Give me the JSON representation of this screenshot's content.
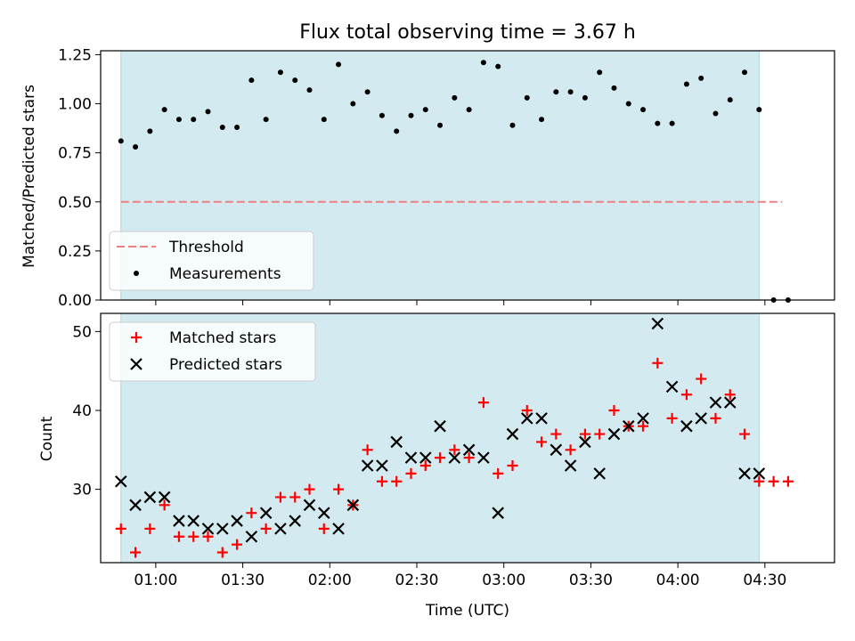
{
  "chart_data": [
    {
      "type": "scatter",
      "title": "Flux total observing time = 3.67 h",
      "xlabel": "",
      "ylabel": "Matched/Predicted stars",
      "xlim": [
        "00:41",
        "04:54"
      ],
      "ylim": [
        0,
        1.27
      ],
      "yticks": [
        "0.00",
        "0.25",
        "0.50",
        "0.75",
        "1.00",
        "1.25"
      ],
      "shaded_region": {
        "x0": "00:48",
        "x1": "04:28",
        "color": "#d3ebf0"
      },
      "legend_position": "lower-left",
      "series": [
        {
          "name": "Threshold",
          "kind": "line",
          "style": "dashed",
          "color": "#f08080",
          "x": [
            "00:48",
            "04:36"
          ],
          "y": [
            0.5,
            0.5
          ]
        },
        {
          "name": "Measurements",
          "kind": "points",
          "color": "#000000",
          "x": [
            "00:48",
            "00:53",
            "00:58",
            "01:03",
            "01:08",
            "01:13",
            "01:18",
            "01:23",
            "01:28",
            "01:33",
            "01:38",
            "01:43",
            "01:48",
            "01:53",
            "01:58",
            "02:03",
            "02:08",
            "02:13",
            "02:18",
            "02:23",
            "02:28",
            "02:33",
            "02:38",
            "02:43",
            "02:48",
            "02:53",
            "02:58",
            "03:03",
            "03:08",
            "03:13",
            "03:18",
            "03:23",
            "03:28",
            "03:33",
            "03:38",
            "03:43",
            "03:48",
            "03:53",
            "03:58",
            "04:03",
            "04:08",
            "04:13",
            "04:18",
            "04:23",
            "04:28",
            "04:33",
            "04:38"
          ],
          "y": [
            0.81,
            0.78,
            0.86,
            0.97,
            0.92,
            0.92,
            0.96,
            0.88,
            0.88,
            1.12,
            0.92,
            1.16,
            1.12,
            1.07,
            0.92,
            1.2,
            1.0,
            1.06,
            0.94,
            0.86,
            0.94,
            0.97,
            0.89,
            1.03,
            0.97,
            1.21,
            1.19,
            0.89,
            1.03,
            0.92,
            1.06,
            1.06,
            1.03,
            1.16,
            1.08,
            1.0,
            0.97,
            0.9,
            0.9,
            1.1,
            1.13,
            0.95,
            1.02,
            1.16,
            0.97,
            0.0,
            0.0
          ]
        }
      ]
    },
    {
      "type": "scatter",
      "title": "",
      "xlabel": "Time (UTC)",
      "ylabel": "Count",
      "xlim": [
        "00:41",
        "04:54"
      ],
      "ylim": [
        20.7,
        52.3
      ],
      "yticks": [
        "30",
        "40",
        "50"
      ],
      "xticks": [
        "01:00",
        "01:30",
        "02:00",
        "02:30",
        "03:00",
        "03:30",
        "04:00",
        "04:30"
      ],
      "shaded_region": {
        "x0": "00:48",
        "x1": "04:28",
        "color": "#d3ebf0"
      },
      "legend_position": "upper-left",
      "series": [
        {
          "name": "Matched stars",
          "kind": "plus",
          "color": "#ff0000",
          "x": [
            "00:48",
            "00:53",
            "00:58",
            "01:03",
            "01:08",
            "01:13",
            "01:18",
            "01:23",
            "01:28",
            "01:33",
            "01:38",
            "01:43",
            "01:48",
            "01:53",
            "01:58",
            "02:03",
            "02:08",
            "02:13",
            "02:18",
            "02:23",
            "02:28",
            "02:33",
            "02:38",
            "02:43",
            "02:48",
            "02:53",
            "02:58",
            "03:03",
            "03:08",
            "03:13",
            "03:18",
            "03:23",
            "03:28",
            "03:33",
            "03:38",
            "03:43",
            "03:48",
            "03:53",
            "03:58",
            "04:03",
            "04:08",
            "04:13",
            "04:18",
            "04:23",
            "04:28",
            "04:33",
            "04:38"
          ],
          "y": [
            25,
            22,
            25,
            28,
            24,
            24,
            24,
            22,
            23,
            27,
            25,
            29,
            29,
            30,
            25,
            30,
            28,
            35,
            31,
            31,
            32,
            33,
            34,
            35,
            34,
            41,
            32,
            33,
            40,
            36,
            37,
            35,
            37,
            37,
            40,
            38,
            38,
            46,
            39,
            42,
            44,
            39,
            42,
            37,
            31,
            31,
            31
          ]
        },
        {
          "name": "Predicted stars",
          "kind": "cross",
          "color": "#000000",
          "x": [
            "00:48",
            "00:53",
            "00:58",
            "01:03",
            "01:08",
            "01:13",
            "01:18",
            "01:23",
            "01:28",
            "01:33",
            "01:38",
            "01:43",
            "01:48",
            "01:53",
            "01:58",
            "02:03",
            "02:08",
            "02:13",
            "02:18",
            "02:23",
            "02:28",
            "02:33",
            "02:38",
            "02:43",
            "02:48",
            "02:53",
            "02:58",
            "03:03",
            "03:08",
            "03:13",
            "03:18",
            "03:23",
            "03:28",
            "03:33",
            "03:38",
            "03:43",
            "03:48",
            "03:53",
            "03:58",
            "04:03",
            "04:08",
            "04:13",
            "04:18",
            "04:23",
            "04:28"
          ],
          "y": [
            31,
            28,
            29,
            29,
            26,
            26,
            25,
            25,
            26,
            24,
            27,
            25,
            26,
            28,
            27,
            25,
            28,
            33,
            33,
            36,
            34,
            34,
            38,
            34,
            35,
            34,
            27,
            37,
            39,
            39,
            35,
            33,
            36,
            32,
            37,
            38,
            39,
            51,
            43,
            38,
            39,
            41,
            41,
            32,
            32
          ]
        }
      ]
    }
  ]
}
